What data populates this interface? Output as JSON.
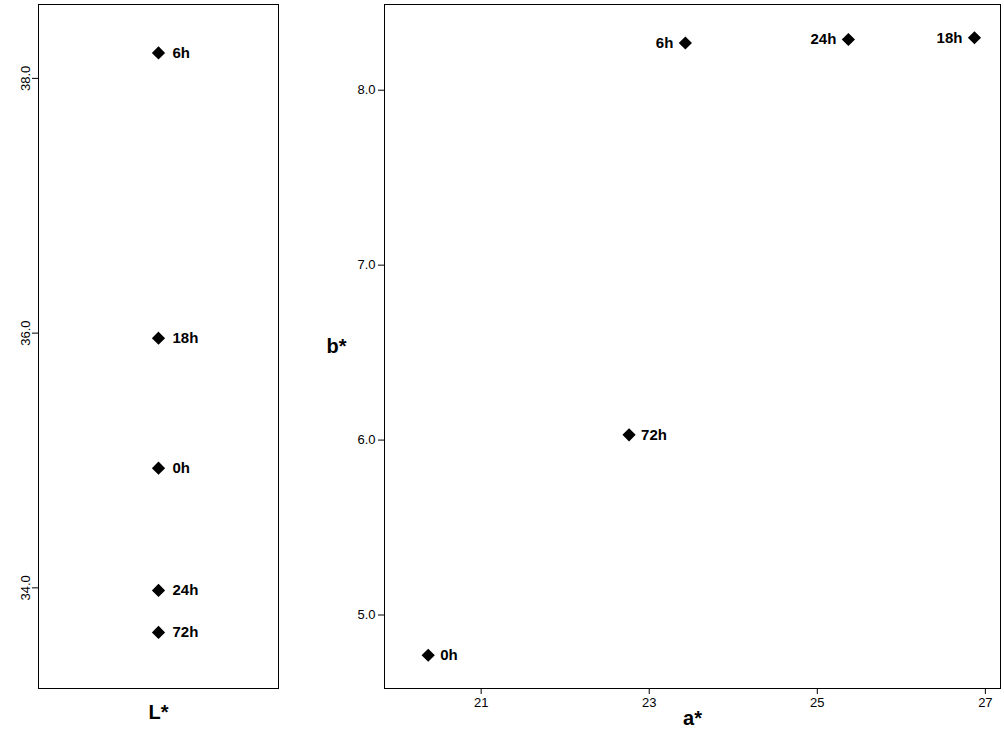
{
  "chart_data": [
    {
      "type": "scatter",
      "xlabel": "L*",
      "point_labels": [
        "0h",
        "6h",
        "18h",
        "24h",
        "72h"
      ],
      "y": [
        34.94,
        38.2,
        35.96,
        33.98,
        33.65
      ],
      "ylim": [
        33.21,
        38.58
      ],
      "yticks": [
        34,
        36,
        38
      ],
      "tick_labels": "y",
      "color": "#000000",
      "marker": "diamond"
    },
    {
      "type": "scatter",
      "xlabel": "a*",
      "ylabel": "b*",
      "point_labels": [
        "0h",
        "6h",
        "18h",
        "24h",
        "72h"
      ],
      "x": [
        20.37,
        23.43,
        26.87,
        25.37,
        22.76
      ],
      "y": [
        4.77,
        8.27,
        8.3,
        8.29,
        6.03
      ],
      "xlim": [
        19.85,
        27.18
      ],
      "xticks": [
        21,
        23,
        25,
        27
      ],
      "ylim": [
        4.58,
        8.49
      ],
      "yticks": [
        5,
        6,
        7,
        8
      ],
      "color": "#000000",
      "marker": "diamond"
    }
  ]
}
